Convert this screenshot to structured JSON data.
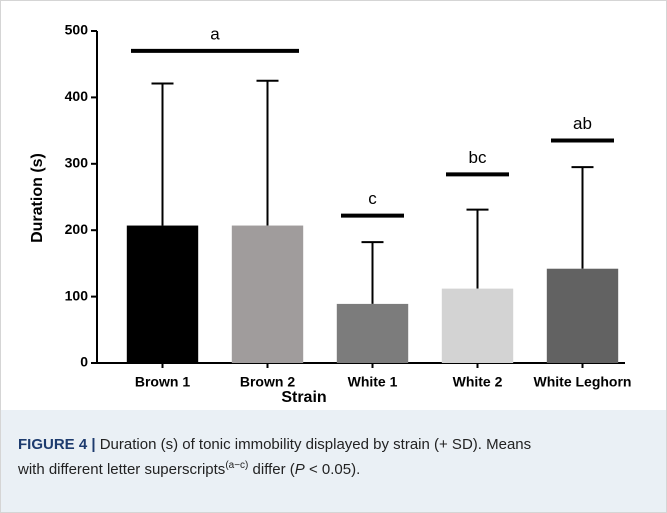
{
  "chart_data": {
    "type": "bar",
    "categories": [
      "Brown 1",
      "Brown 2",
      "White 1",
      "White 2",
      "White Leghorn"
    ],
    "values": [
      207,
      207,
      89,
      112,
      142
    ],
    "errors": [
      214,
      218,
      93,
      119,
      153
    ],
    "colors": [
      "#000000",
      "#a09c9c",
      "#7c7c7c",
      "#d3d3d3",
      "#626262"
    ],
    "xlabel": "Strain",
    "ylabel": "Duration (s)",
    "ylim": [
      0,
      500
    ],
    "yticks": [
      0,
      100,
      200,
      300,
      400,
      500
    ],
    "annotations": [
      {
        "text": "a",
        "y": 470,
        "categories": [
          "Brown 1",
          "Brown 2"
        ]
      },
      {
        "text": "c",
        "y": 222,
        "categories": [
          "White 1"
        ]
      },
      {
        "text": "bc",
        "y": 284,
        "categories": [
          "White 2"
        ]
      },
      {
        "text": "ab",
        "y": 335,
        "categories": [
          "White Leghorn"
        ]
      }
    ]
  },
  "caption": {
    "label": "FIGURE 4 |",
    "line1": "Duration (s) of tonic immobility displayed by strain (+ SD). Means",
    "line2": "with different letter superscripts",
    "superscript": "(a−c)",
    "line2b": " differ (",
    "italic": "P",
    "line2c": " < 0.05)."
  }
}
